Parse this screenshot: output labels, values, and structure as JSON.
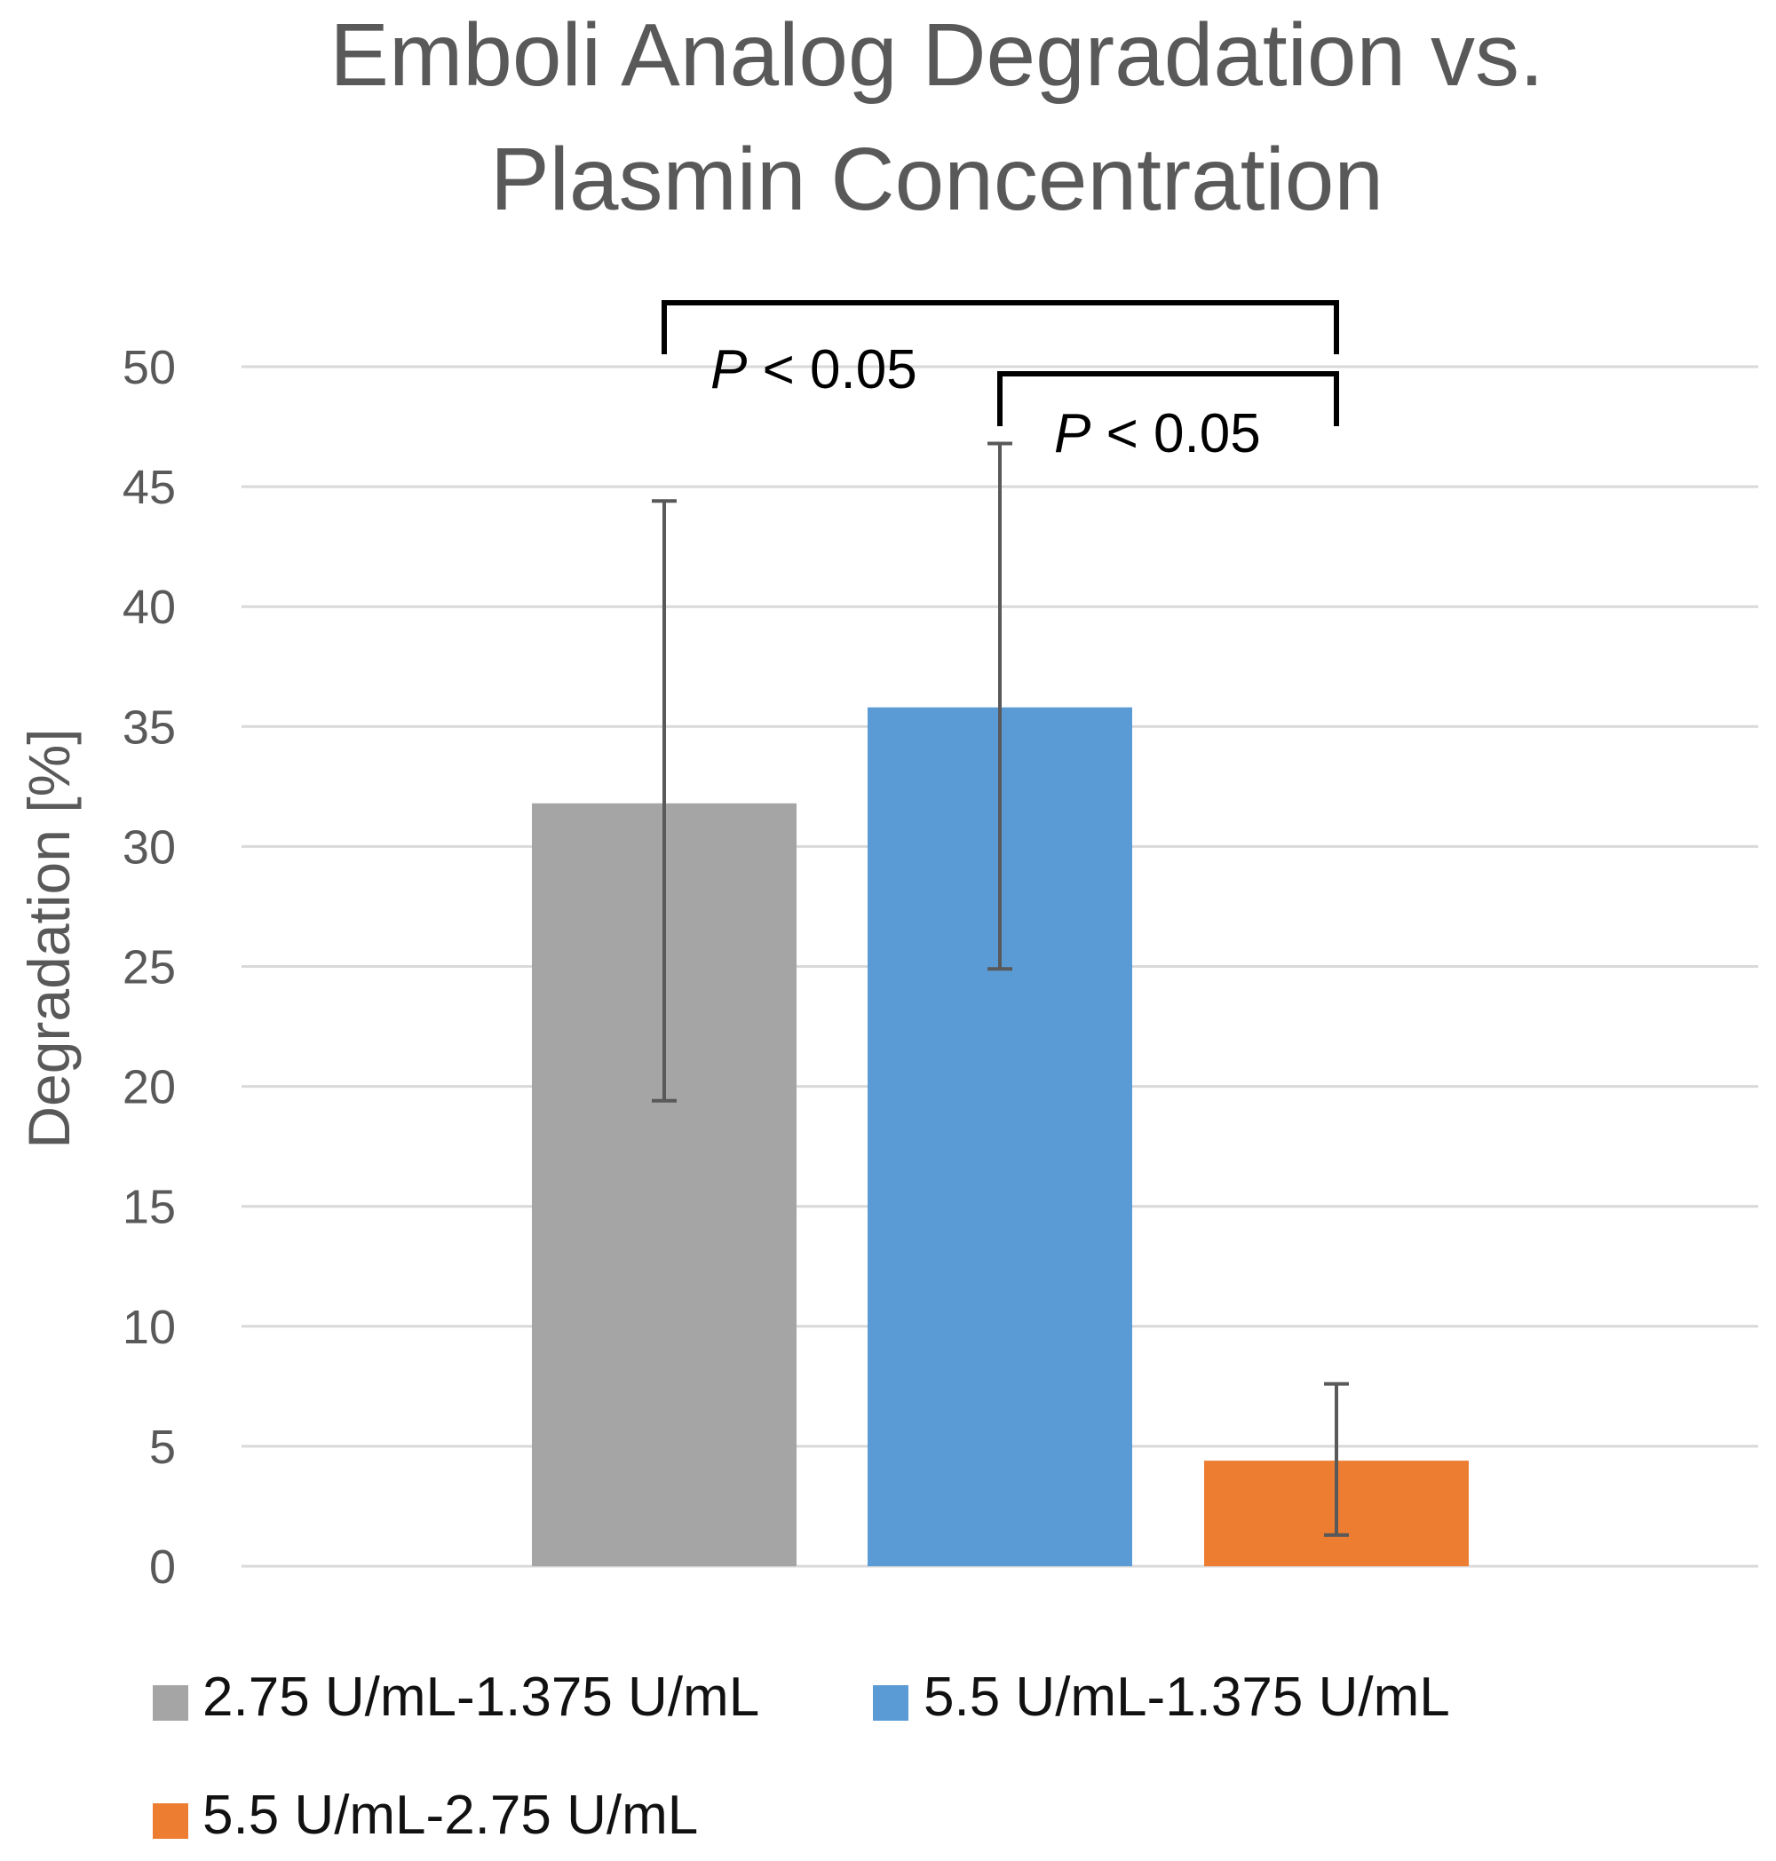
{
  "chart_data": {
    "type": "bar",
    "title": "Emboli Analog Degradation vs. Plasmin Concentration",
    "title_lines": [
      "Emboli Analog Degradation vs.",
      "Plasmin Concentration"
    ],
    "xlabel": "",
    "ylabel": "Degradation [%]",
    "ylim": [
      0,
      50
    ],
    "yticks": [
      0,
      5,
      10,
      15,
      20,
      25,
      30,
      35,
      40,
      45,
      50
    ],
    "grid": true,
    "legend_position": "bottom",
    "series": [
      {
        "name": "2.75 U/mL-1.375 U/mL",
        "value": 31.8,
        "error_low": 19.4,
        "error_high": 44.4,
        "color": "#a5a5a5"
      },
      {
        "name": "5.5 U/mL-1.375 U/mL",
        "value": 35.8,
        "error_low": 24.9,
        "error_high": 46.8,
        "color": "#5b9bd5"
      },
      {
        "name": "5.5 U/mL-2.75 U/mL",
        "value": 4.4,
        "error_low": 1.3,
        "error_high": 7.6,
        "color": "#ed7d31"
      }
    ],
    "annotations": [
      {
        "type": "significance",
        "from": 0,
        "to": 2,
        "label_italic": "P",
        "label_rest": " < 0.05"
      },
      {
        "type": "significance",
        "from": 1,
        "to": 2,
        "label_italic": "P",
        "label_rest": " < 0.05"
      }
    ]
  }
}
